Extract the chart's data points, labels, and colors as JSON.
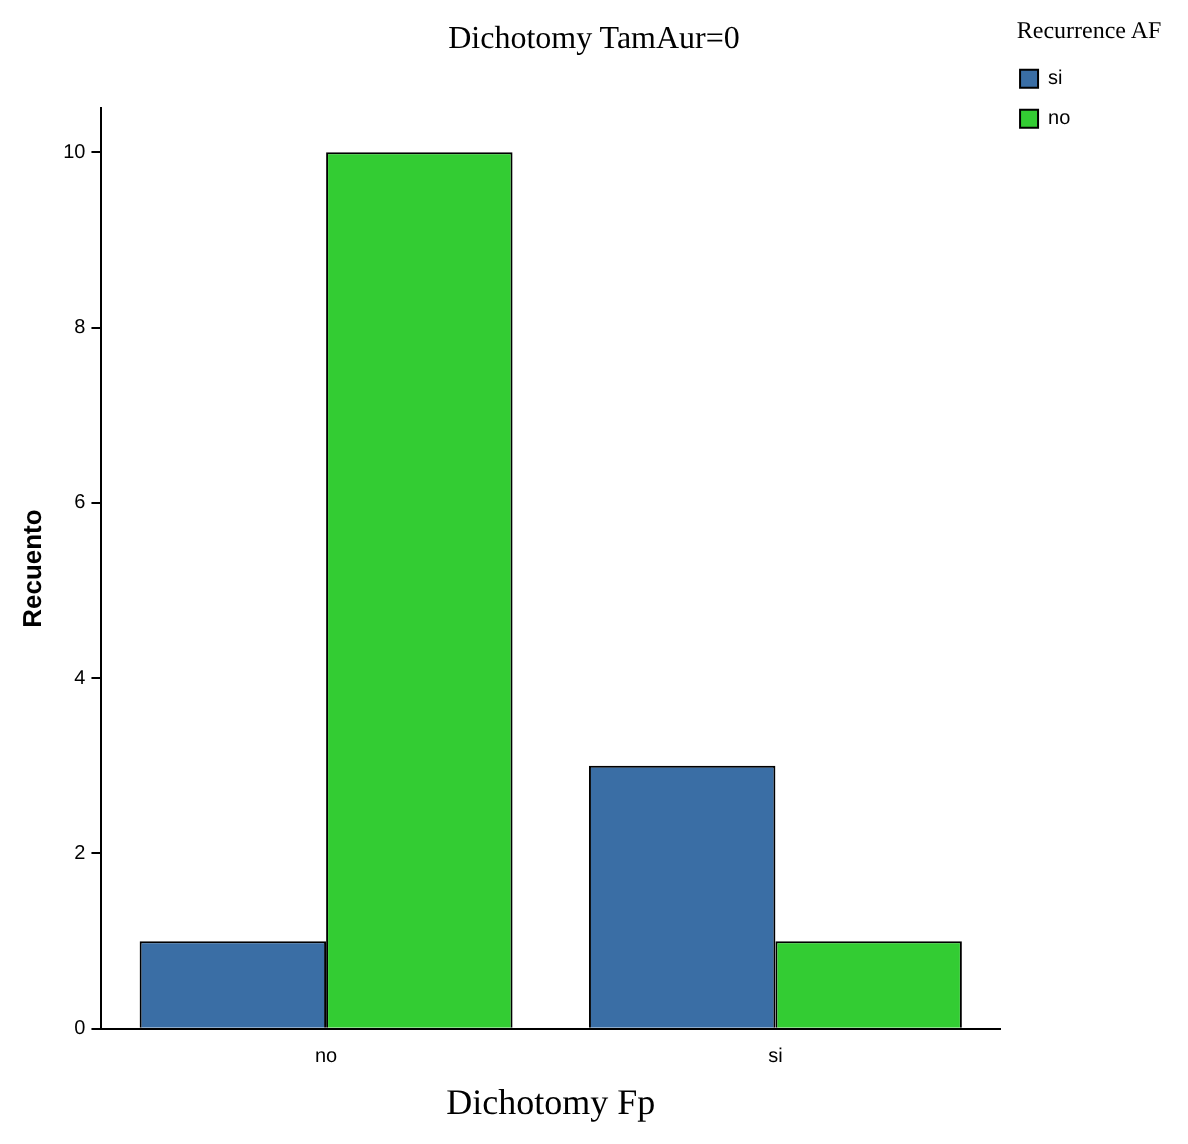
{
  "chart_data": {
    "type": "bar",
    "title": "Dichotomy TamAur=0",
    "xlabel": "Dichotomy Fp",
    "ylabel": "Recuento",
    "legend_title": "Recurrence AF",
    "legend": "right",
    "categories": [
      "no",
      "si"
    ],
    "series": [
      {
        "name": "si",
        "color": "#3a6ea5",
        "values": [
          1,
          3
        ]
      },
      {
        "name": "no",
        "color": "#33cc33",
        "values": [
          10,
          1
        ]
      }
    ],
    "ylim": [
      0,
      10.5
    ],
    "yticks": [
      0,
      2,
      4,
      6,
      8,
      10
    ],
    "grid": false
  }
}
